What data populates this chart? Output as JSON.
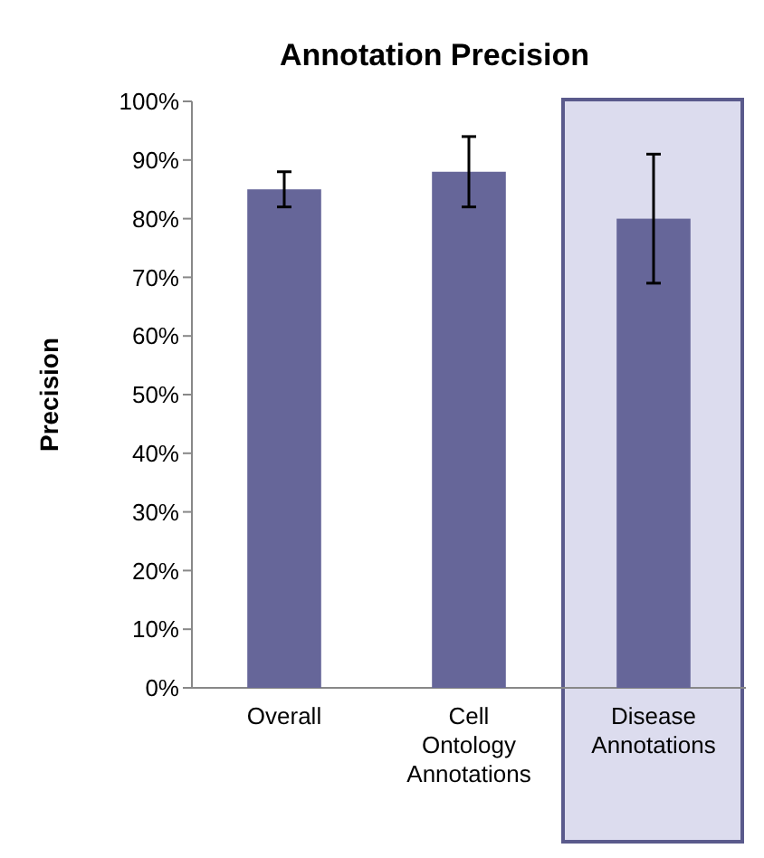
{
  "chart_data": {
    "type": "bar",
    "title": "Annotation Precision",
    "ylabel": "Precision",
    "categories": [
      "Overall",
      "Cell Ontology Annotations",
      "Disease Annotations"
    ],
    "values": [
      85,
      88,
      80
    ],
    "errors": [
      3,
      6,
      11
    ],
    "color": "#666699",
    "ylim": [
      0,
      100
    ],
    "yticks": [
      {
        "value": 0,
        "label": "0%"
      },
      {
        "value": 10,
        "label": "10%"
      },
      {
        "value": 20,
        "label": "20%"
      },
      {
        "value": 30,
        "label": "30%"
      },
      {
        "value": 40,
        "label": "40%"
      },
      {
        "value": 50,
        "label": "50%"
      },
      {
        "value": 60,
        "label": "60%"
      },
      {
        "value": 70,
        "label": "70%"
      },
      {
        "value": 80,
        "label": "80%"
      },
      {
        "value": 90,
        "label": "90%"
      },
      {
        "value": 100,
        "label": "100%"
      }
    ],
    "bands": [
      {
        "axis": "x",
        "from": "Disease Annotations",
        "to": "Disease Annotations",
        "color": "#dcdcee"
      }
    ],
    "grid": false
  }
}
